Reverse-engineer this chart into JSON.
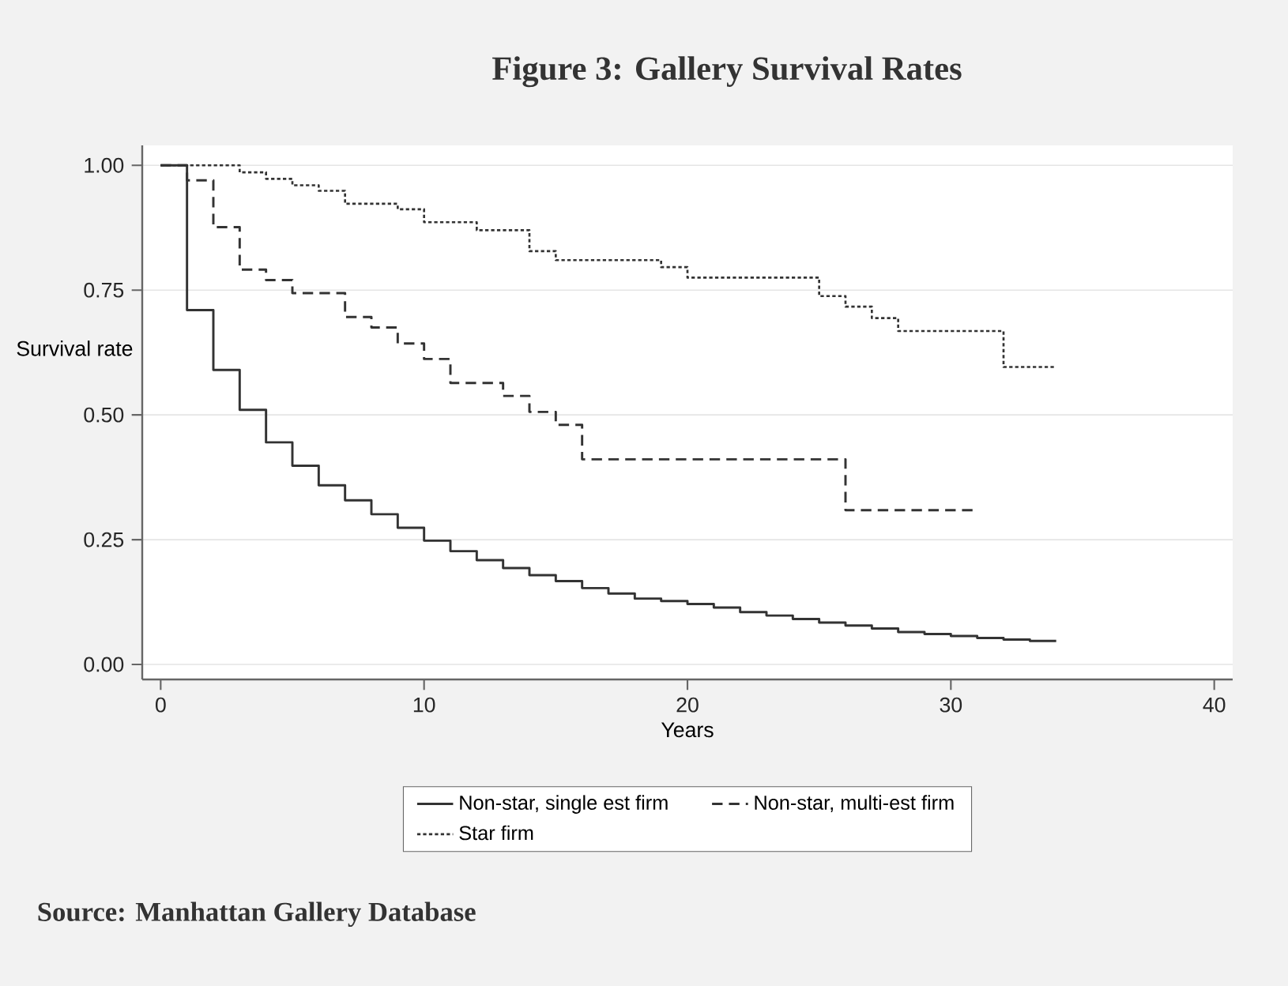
{
  "chart_data": {
    "type": "step",
    "title": "Figure 3: Gallery Survival Rates",
    "xlabel": "Years",
    "ylabel": "Survival rate",
    "annotations": [
      "Source: Manhattan Gallery Database"
    ],
    "xlim": [
      -0.7,
      40.7
    ],
    "ylim": [
      -0.03,
      1.04
    ],
    "xticks": [
      0,
      10,
      20,
      30,
      40
    ],
    "yticks": [
      {
        "value": 0,
        "label": "0.00"
      },
      {
        "value": 0.25,
        "label": "0.25"
      },
      {
        "value": 0.5,
        "label": "0.50"
      },
      {
        "value": 0.75,
        "label": "0.75"
      },
      {
        "value": 1,
        "label": "1.00"
      }
    ],
    "grid": "y",
    "legend": "bottom",
    "marker": "none",
    "series": [
      {
        "name": "Non-star, single est firm",
        "color": "#333333",
        "line_style": "solid",
        "x": [
          0,
          1,
          2,
          3,
          4,
          5,
          6,
          7,
          8,
          9,
          10,
          11,
          12,
          13,
          14,
          15,
          16,
          17,
          18,
          19,
          20,
          21,
          22,
          23,
          24,
          25,
          26,
          27,
          28,
          29,
          30,
          31,
          32,
          33,
          34
        ],
        "values": [
          1.0,
          0.71,
          0.59,
          0.51,
          0.445,
          0.398,
          0.359,
          0.329,
          0.301,
          0.274,
          0.248,
          0.227,
          0.209,
          0.193,
          0.179,
          0.167,
          0.153,
          0.142,
          0.132,
          0.127,
          0.121,
          0.114,
          0.105,
          0.098,
          0.091,
          0.084,
          0.078,
          0.072,
          0.065,
          0.061,
          0.057,
          0.053,
          0.05,
          0.047,
          0.047
        ]
      },
      {
        "name": "Non-star, multi-est firm",
        "color": "#333333",
        "line_style": "dashed",
        "x": [
          0,
          1,
          2,
          3,
          4,
          5,
          7,
          8,
          9,
          10,
          11,
          13,
          14,
          15,
          16,
          26,
          31
        ],
        "values": [
          1.0,
          0.97,
          0.876,
          0.791,
          0.77,
          0.744,
          0.696,
          0.675,
          0.643,
          0.612,
          0.564,
          0.538,
          0.506,
          0.48,
          0.411,
          0.309,
          0.309
        ]
      },
      {
        "name": "Star firm",
        "color": "#333333",
        "line_style": "dotted",
        "x": [
          0,
          3,
          4,
          5,
          6,
          7,
          9,
          10,
          12,
          14,
          15,
          19,
          20,
          25,
          26,
          27,
          28,
          32,
          34
        ],
        "values": [
          1.0,
          0.986,
          0.973,
          0.96,
          0.949,
          0.923,
          0.912,
          0.886,
          0.87,
          0.828,
          0.81,
          0.796,
          0.775,
          0.738,
          0.717,
          0.694,
          0.668,
          0.596,
          0.596
        ]
      }
    ]
  }
}
